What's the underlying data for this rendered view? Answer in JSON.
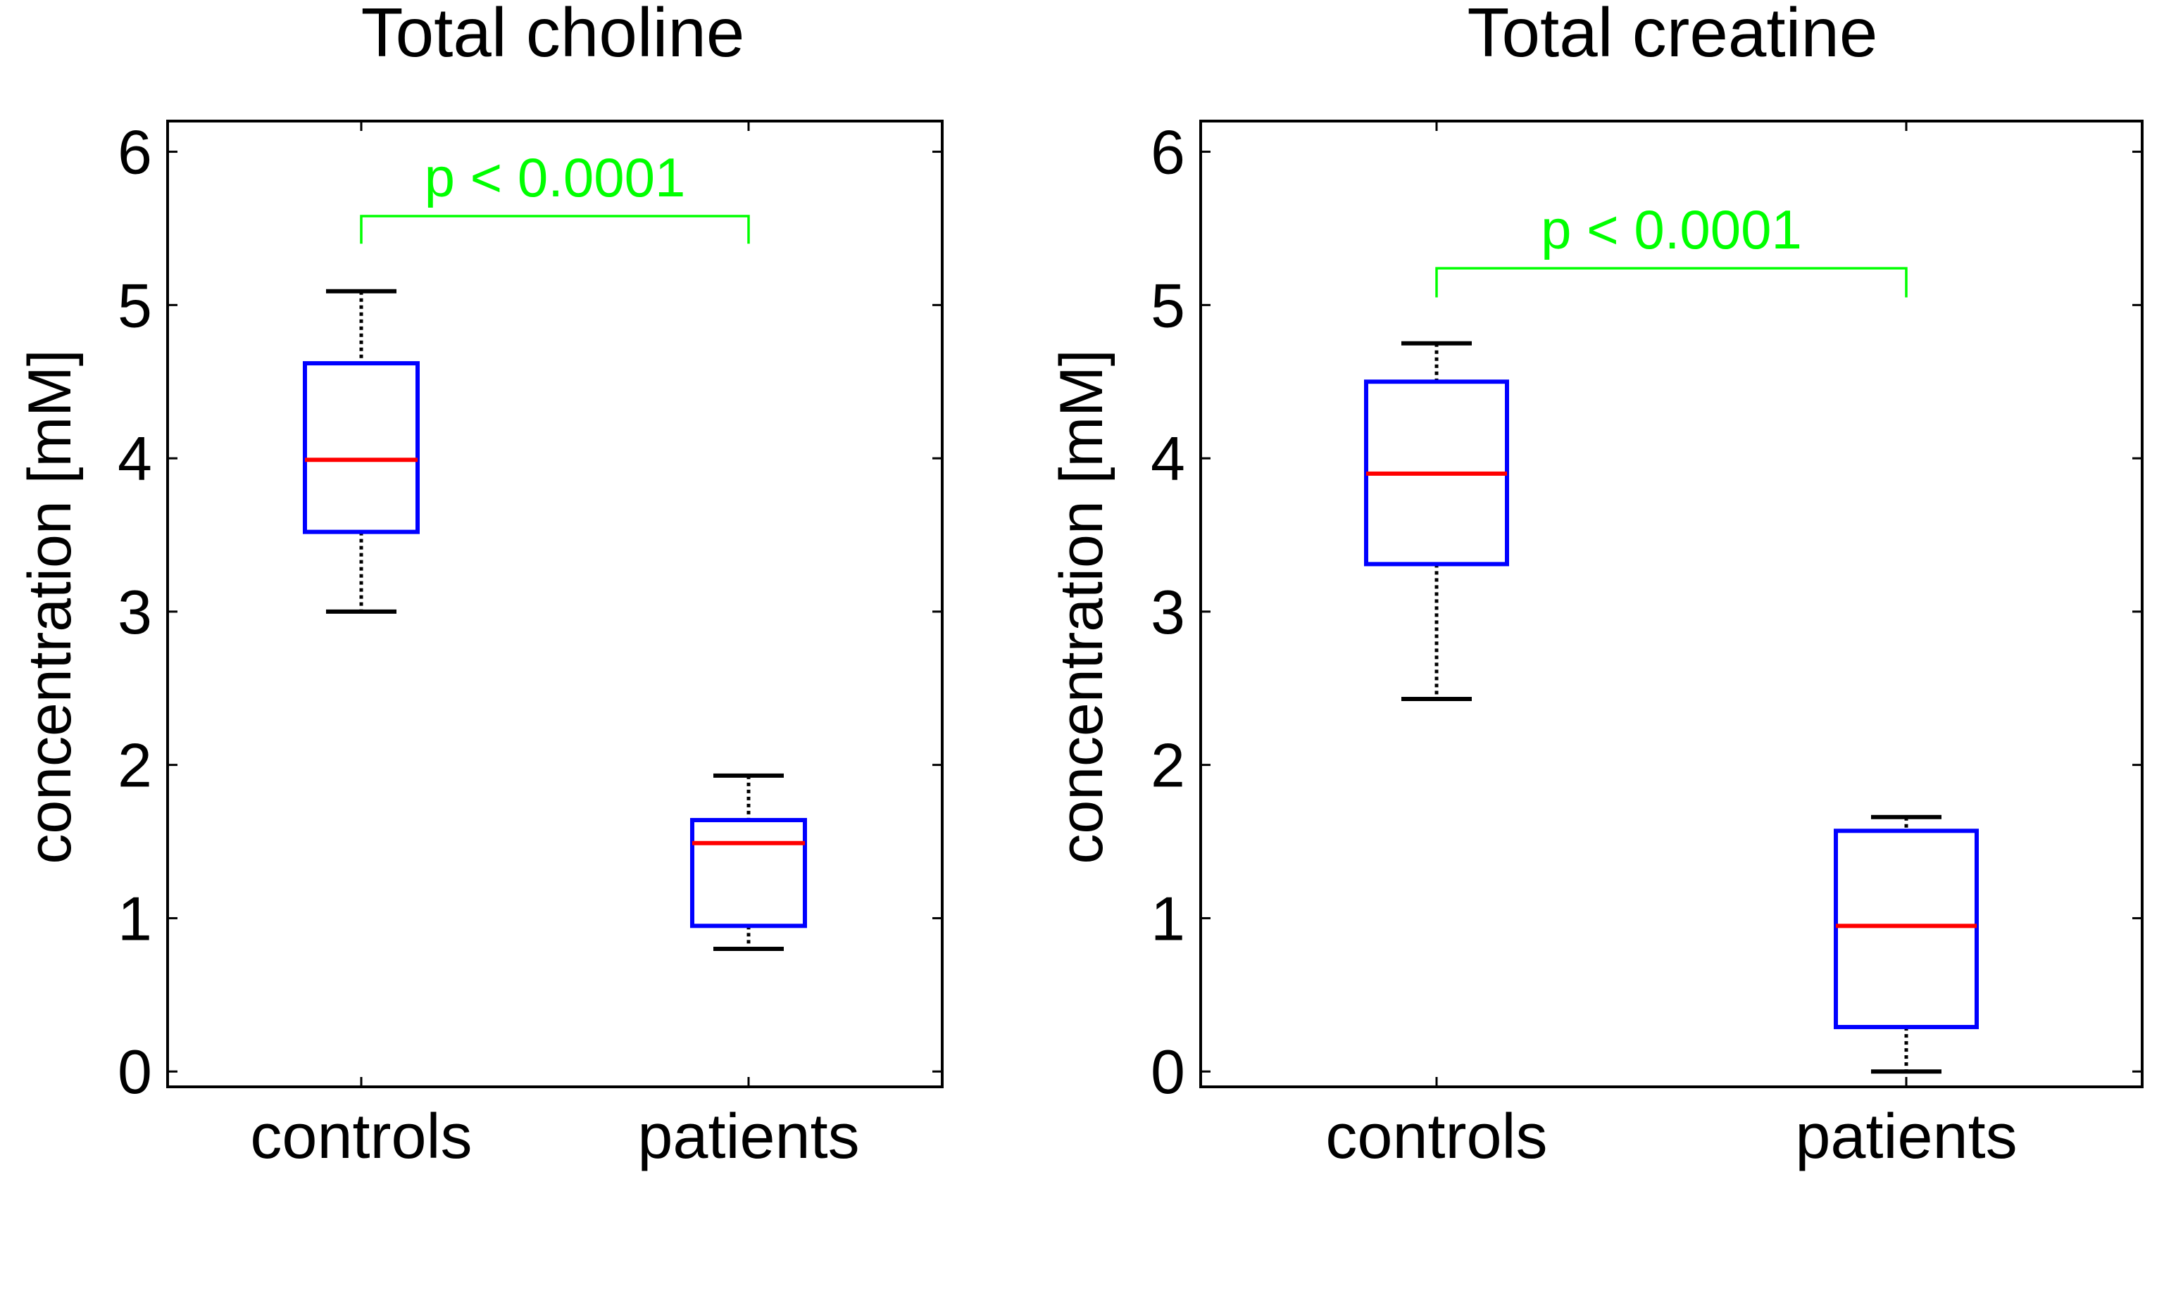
{
  "chart_data": [
    {
      "type": "box",
      "title": "Total choline",
      "xlabel": "",
      "ylabel": "concentration [mM]",
      "ylim": [
        -0.1,
        6.2
      ],
      "yticks": [
        0,
        1,
        2,
        3,
        4,
        5,
        6
      ],
      "categories": [
        "controls",
        "patients"
      ],
      "boxes": [
        {
          "name": "controls",
          "whisker_low": 3.0,
          "q1": 3.52,
          "median": 3.99,
          "q3": 4.62,
          "whisker_high": 5.09
        },
        {
          "name": "patients",
          "whisker_low": 0.8,
          "q1": 0.95,
          "median": 1.49,
          "q3": 1.64,
          "whisker_high": 1.93
        }
      ],
      "annotation": {
        "text": "p < 0.0001",
        "y": 5.58,
        "tick_bottom": 5.4,
        "from": "controls",
        "to": "patients"
      }
    },
    {
      "type": "box",
      "title": "Total creatine",
      "xlabel": "",
      "ylabel": "concentration [mM]",
      "ylim": [
        -0.1,
        6.2
      ],
      "yticks": [
        0,
        1,
        2,
        3,
        4,
        5,
        6
      ],
      "categories": [
        "controls",
        "patients"
      ],
      "boxes": [
        {
          "name": "controls",
          "whisker_low": 2.43,
          "q1": 3.31,
          "median": 3.9,
          "q3": 4.5,
          "whisker_high": 4.75
        },
        {
          "name": "patients",
          "whisker_low": 0.0,
          "q1": 0.29,
          "median": 0.95,
          "q3": 1.57,
          "whisker_high": 1.66
        }
      ],
      "annotation": {
        "text": "p < 0.0001",
        "y": 5.24,
        "tick_bottom": 5.05,
        "from": "controls",
        "to": "patients"
      }
    }
  ],
  "colors": {
    "box": "#0000ff",
    "median": "#ff0000",
    "whisker": "#000000",
    "annotation": "#00ff00",
    "axes": "#000000"
  }
}
